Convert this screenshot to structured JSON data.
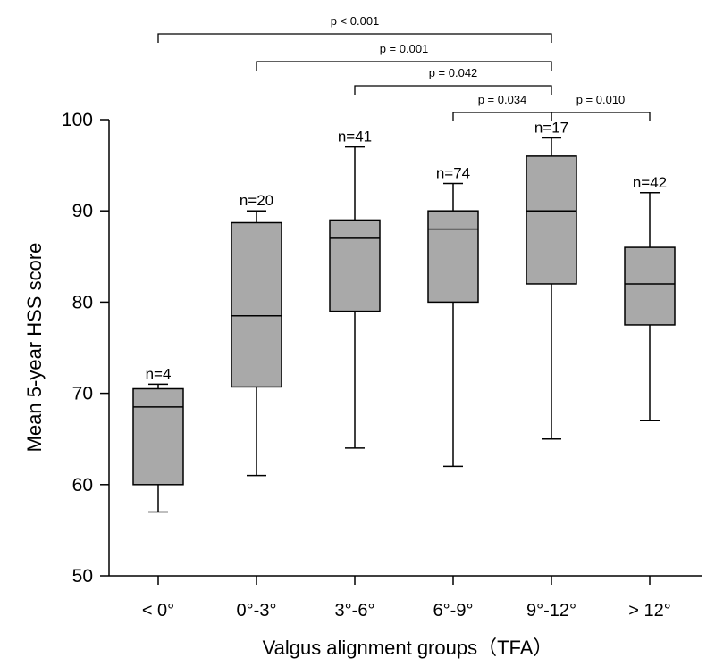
{
  "chart_data": {
    "type": "box",
    "ylabel": "Mean 5-year HSS score",
    "xlabel": "Valgus alignment groups（TFA）",
    "ylim": [
      50,
      100
    ],
    "yticks": [
      50,
      60,
      70,
      80,
      90,
      100
    ],
    "box_color": "#a9a9a9",
    "categories": [
      "< 0°",
      "0°-3°",
      "3°-6°",
      "6°-9°",
      "9°-12°",
      "> 12°"
    ],
    "boxes": [
      {
        "category": "< 0°",
        "n_label": "n=4",
        "min": 57,
        "q1": 60,
        "median": 68.5,
        "q3": 70.5,
        "max": 71
      },
      {
        "category": "0°-3°",
        "n_label": "n=20",
        "min": 61,
        "q1": 70.7,
        "median": 78.5,
        "q3": 88.7,
        "max": 90
      },
      {
        "category": "3°-6°",
        "n_label": "n=41",
        "min": 64,
        "q1": 79,
        "median": 87,
        "q3": 89,
        "max": 97
      },
      {
        "category": "6°-9°",
        "n_label": "n=74",
        "min": 62,
        "q1": 80,
        "median": 88,
        "q3": 90,
        "max": 93
      },
      {
        "category": "9°-12°",
        "n_label": "n=17",
        "min": 65,
        "q1": 82,
        "median": 90,
        "q3": 96,
        "max": 98
      },
      {
        "category": "> 12°",
        "n_label": "n=42",
        "min": 67,
        "q1": 77.5,
        "median": 82,
        "q3": 86,
        "max": 92
      }
    ],
    "significance": [
      {
        "from": 0,
        "to": 4,
        "label": "p < 0.001"
      },
      {
        "from": 1,
        "to": 4,
        "label": "p = 0.001"
      },
      {
        "from": 2,
        "to": 4,
        "label": "p = 0.042"
      },
      {
        "from": 3,
        "to": 4,
        "label": "p = 0.034"
      },
      {
        "from": 4,
        "to": 5,
        "label": "p = 0.010"
      }
    ]
  }
}
